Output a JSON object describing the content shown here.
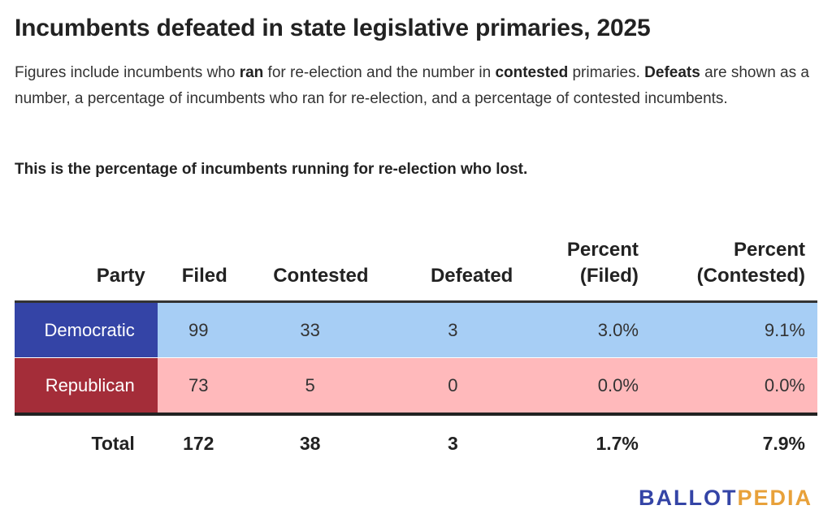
{
  "title": "Incumbents defeated in state legislative primaries, 2025",
  "description": {
    "p1": "Figures include incumbents who ",
    "b1": "ran",
    "p2": " for re-election and the number in ",
    "b2": "contested",
    "p3": " primaries. ",
    "b3": "Defeats",
    "p4": " are shown as a number, a percentage of incumbents who ran for re-election, and a percentage of contested incumbents."
  },
  "note": "This is the percentage of incumbents running for re-election who lost.",
  "colors": {
    "democratic_label": "#3444a6",
    "democratic_cells": "#a7cef5",
    "republican_label": "#a42d39",
    "republican_cells": "#ffb9bb",
    "logo_ballot": "#3444a6",
    "logo_pedia": "#e8a13a"
  },
  "chart_data": {
    "type": "table",
    "columns": [
      "Party",
      "Filed",
      "Contested",
      "Defeated",
      "Percent (Filed)",
      "Percent (Contested)"
    ],
    "header": {
      "party": "Party",
      "filed": "Filed",
      "contested": "Contested",
      "defeated": "Defeated",
      "pct_filed_1": "Percent",
      "pct_filed_2": "(Filed)",
      "pct_contested_1": "Percent",
      "pct_contested_2": "(Contested)"
    },
    "rows": [
      {
        "party": "Democratic",
        "filed": "99",
        "contested": "33",
        "defeated": "3",
        "pct_filed": "3.0%",
        "pct_contested": "9.1%"
      },
      {
        "party": "Republican",
        "filed": "73",
        "contested": "5",
        "defeated": "0",
        "pct_filed": "0.0%",
        "pct_contested": "0.0%"
      }
    ],
    "total": {
      "label": "Total",
      "filed": "172",
      "contested": "38",
      "defeated": "3",
      "pct_filed": "1.7%",
      "pct_contested": "7.9%"
    }
  },
  "logo": {
    "part1": "BALLOT",
    "part2": "PEDIA"
  }
}
